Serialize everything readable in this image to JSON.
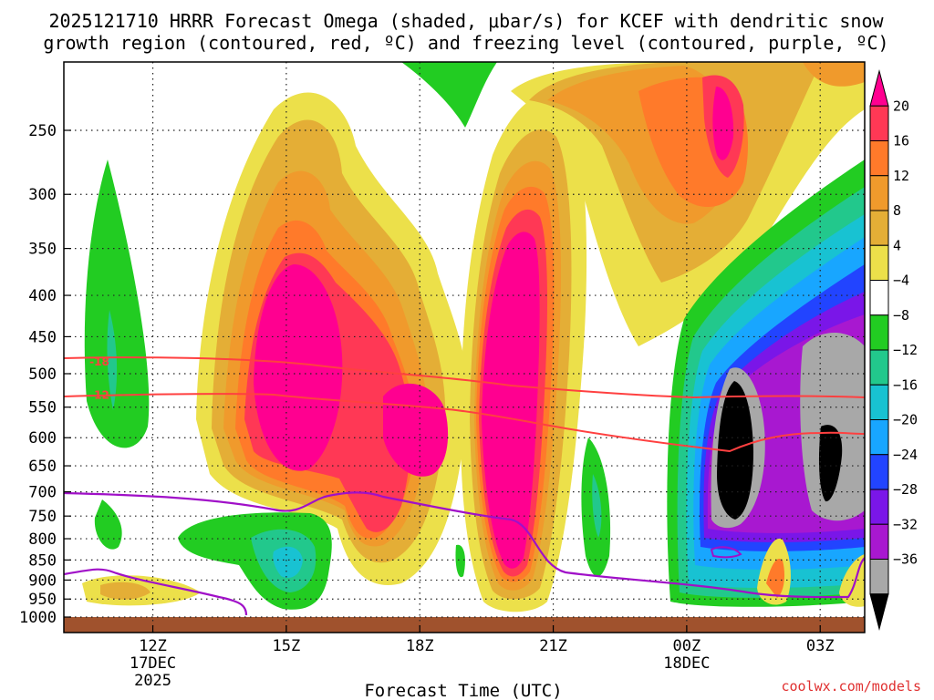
{
  "chart_data": {
    "type": "heatmap",
    "title_lines": [
      "2025121710 HRRR Forecast Omega (shaded, μbar/s) for KCEF with dendritic snow",
      "growth region (contoured, red, ºC) and freezing level (contoured, purple, ºC)"
    ],
    "xlabel": "Forecast Time (UTC)",
    "ylabel": "",
    "credit": "coolwx.com/models",
    "x_ticks": [
      {
        "hour": 12,
        "lines": [
          "12Z",
          "17DEC",
          "2025"
        ]
      },
      {
        "hour": 15,
        "lines": [
          "15Z"
        ]
      },
      {
        "hour": 18,
        "lines": [
          "18Z"
        ]
      },
      {
        "hour": 21,
        "lines": [
          "21Z"
        ]
      },
      {
        "hour": 24,
        "lines": [
          "00Z",
          "18DEC"
        ]
      },
      {
        "hour": 27,
        "lines": [
          "03Z"
        ]
      }
    ],
    "xlim_hours": [
      10,
      28
    ],
    "y_ticks": [
      250,
      300,
      350,
      400,
      450,
      500,
      550,
      600,
      650,
      700,
      750,
      800,
      850,
      900,
      950,
      1000
    ],
    "ylim_mb": [
      200,
      1010
    ],
    "y_scale": "log",
    "grid": true,
    "colorbar": {
      "orientation": "vertical",
      "placement": "right",
      "labels": [
        "20",
        "16",
        "12",
        "8",
        "4",
        "−4",
        "−8",
        "−12",
        "−16",
        "−20",
        "−24",
        "−28",
        "−32",
        "−36"
      ],
      "colors": [
        "#ff0090",
        "#ff3855",
        "#ff7a2a",
        "#f09a2c",
        "#e4ae36",
        "#ece04a",
        "#ffffff",
        "#22cc22",
        "#22c88c",
        "#18c2d2",
        "#18a6ff",
        "#2244ff",
        "#7a16e8",
        "#a818d0",
        "#a8a8a8",
        "#000000"
      ]
    },
    "contour_labels": [
      {
        "text": "-18",
        "hour": 10.8,
        "mb": 482
      },
      {
        "text": "-12",
        "hour": 10.8,
        "mb": 530
      }
    ],
    "terrain_color": "#a0522d"
  }
}
